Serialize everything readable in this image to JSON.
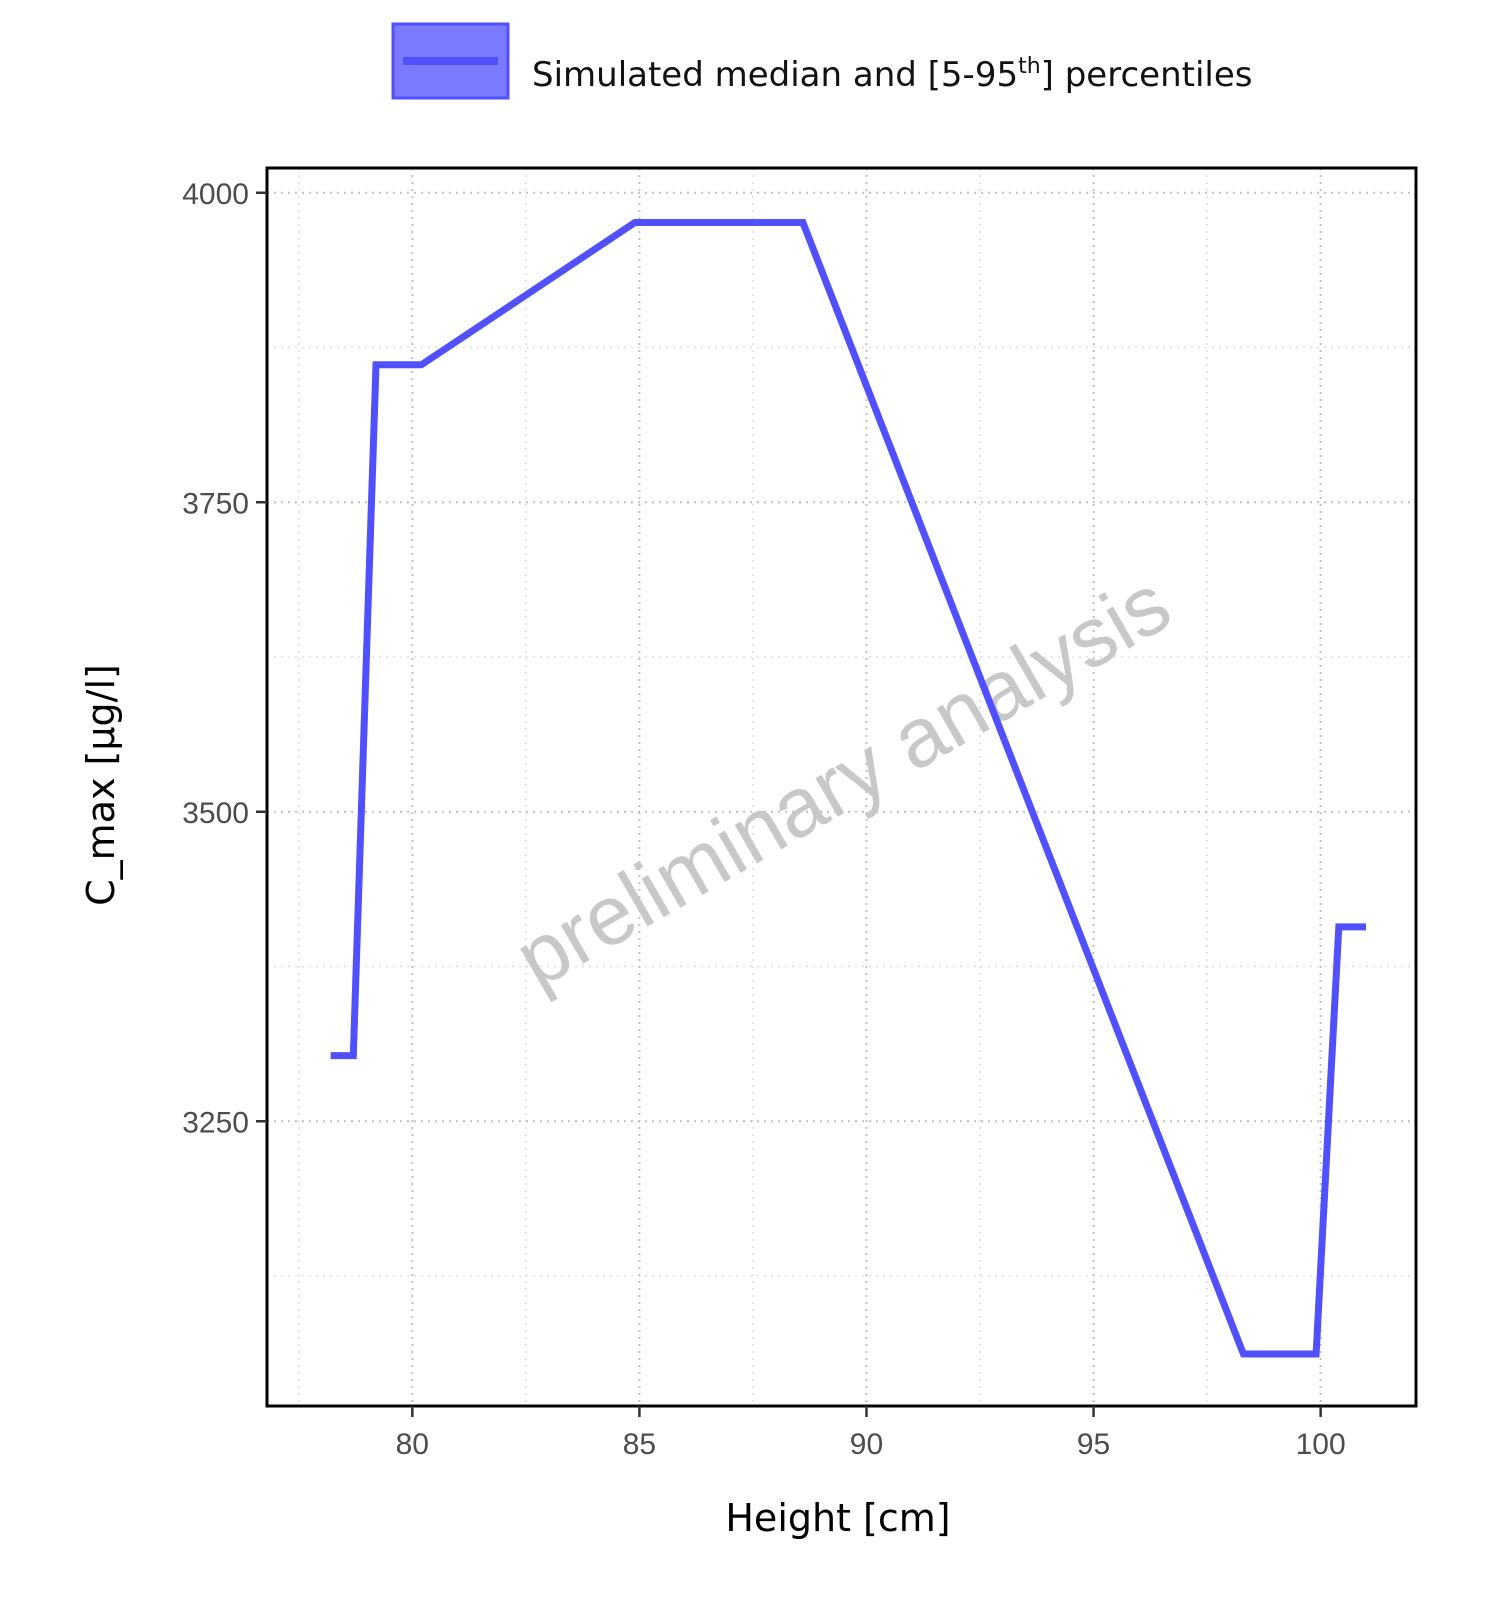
{
  "chart_data": {
    "type": "line",
    "title": "",
    "xlabel": "Height [cm]",
    "ylabel": "C_max [µg/l]",
    "xlim": [
      76.8,
      102.1
    ],
    "ylim": [
      3020,
      4020
    ],
    "x_ticks": [
      80,
      85,
      90,
      95,
      100
    ],
    "x_tick_labels": [
      "80",
      "85",
      "90",
      "95",
      "100"
    ],
    "y_ticks": [
      3250,
      3500,
      3750,
      4000
    ],
    "y_tick_labels": [
      "3250",
      "3500",
      "3750",
      "4000"
    ],
    "x_minor_grid": [
      77.5,
      82.5,
      87.5,
      92.5,
      97.5
    ],
    "y_minor_grid": [
      3125,
      3375,
      3625,
      3875
    ],
    "grid": true,
    "grid_style": "dotted",
    "legend_placement": "top",
    "legend": {
      "label_main": "Simulated median and [5-95",
      "label_sup": "th",
      "label_end": "] percentiles"
    },
    "watermark": "preliminary analysis",
    "colors": {
      "line": "#5050ff",
      "band_fill": "#7a7aff",
      "band_stroke": "#5050ff",
      "watermark": "#c8c8c8",
      "grid": "#c0c0c0"
    },
    "series": [
      {
        "name": "Simulated median and [5-95th] percentiles",
        "x": [
          78.2,
          78.7,
          79.2,
          80.2,
          84.9,
          88.6,
          98.3,
          99.9,
          100.4,
          101.0
        ],
        "y": [
          3303,
          3303,
          3861,
          3861,
          3976,
          3976,
          3062,
          3062,
          3407,
          3407
        ]
      }
    ]
  }
}
